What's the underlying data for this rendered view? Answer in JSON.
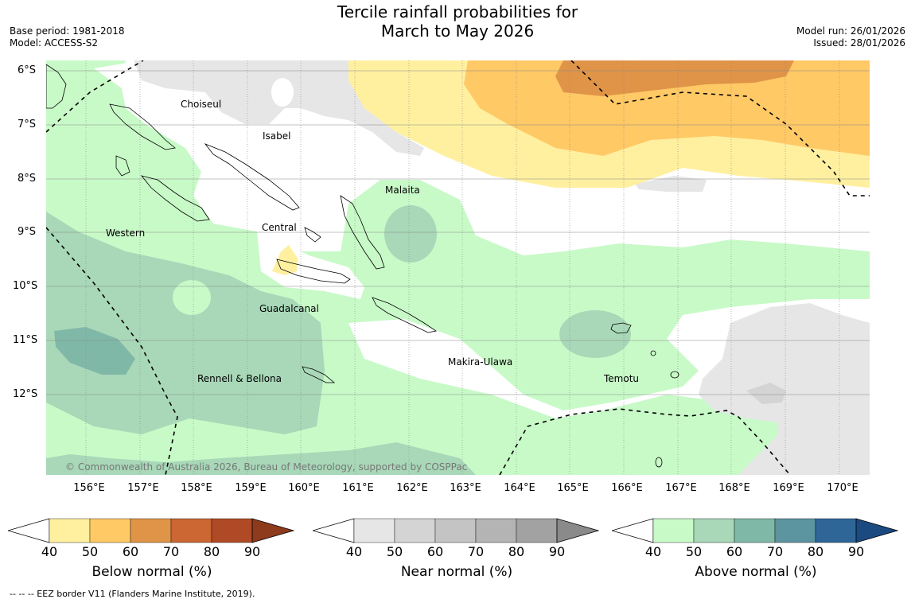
{
  "title_line1": "Tercile rainfall probabilities for",
  "title_line2": "March to May 2026",
  "base_period": "Base period: 1981-2018",
  "model": "Model: ACCESS-S2",
  "model_run": "Model run: 26/01/2026",
  "issued": "Issued: 28/01/2026",
  "credit": "© Commonwealth of Australia 2026, Bureau of Meteorology, supported by COSPPac",
  "footer": "--  --  -- EEZ border V11 (Flanders Marine Institute, 2019).",
  "lat_labels": [
    "6°S",
    "7°S",
    "8°S",
    "9°S",
    "10°S",
    "11°S",
    "12°S"
  ],
  "lon_labels": [
    "156°E",
    "157°E",
    "158°E",
    "159°E",
    "160°E",
    "161°E",
    "162°E",
    "163°E",
    "164°E",
    "165°E",
    "166°E",
    "167°E",
    "168°E",
    "169°E",
    "170°E"
  ],
  "regions": {
    "choiseul": "Choiseul",
    "isabel": "Isabel",
    "malaita": "Malaita",
    "western": "Western",
    "central": "Central",
    "guadalcanal": "Guadalcanal",
    "makira": "Makira-Ulawa",
    "rennell": "Rennell & Bellona",
    "temotu": "Temotu"
  },
  "colorbars": {
    "below": {
      "label": "Below normal (%)",
      "ticks": [
        "40",
        "50",
        "60",
        "70",
        "80",
        "90"
      ],
      "colors": [
        "#fff0a0",
        "#ffc966",
        "#e09448",
        "#cc6633",
        "#b04a26",
        "#8e3a1c"
      ]
    },
    "near": {
      "label": "Near normal (%)",
      "ticks": [
        "40",
        "50",
        "60",
        "70",
        "80",
        "90"
      ],
      "colors": [
        "#e6e6e6",
        "#d4d4d4",
        "#c4c4c4",
        "#b4b4b4",
        "#a2a2a2",
        "#8a8a8a"
      ]
    },
    "above": {
      "label": "Above normal (%)",
      "ticks": [
        "40",
        "50",
        "60",
        "70",
        "80",
        "90"
      ],
      "colors": [
        "#c8fac8",
        "#a8d8b8",
        "#80b8a8",
        "#5c94a0",
        "#2f6698",
        "#1a4a80"
      ]
    }
  }
}
